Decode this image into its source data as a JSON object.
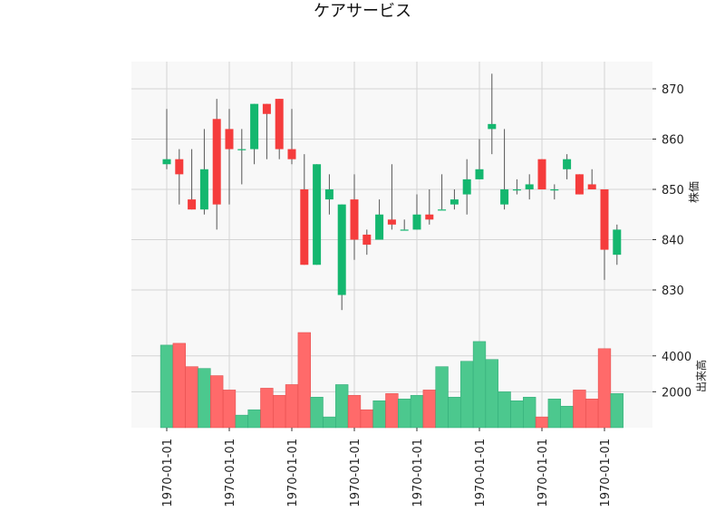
{
  "chart_data": {
    "type": "candlestick",
    "title": "ケアサービス",
    "price_axis": {
      "label": "株価",
      "ticks": [
        830,
        840,
        850,
        860,
        870
      ],
      "ylim": [
        824.5,
        876.5
      ]
    },
    "volume_axis": {
      "label": "出来高",
      "ticks": [
        2000,
        4000
      ],
      "tick_labels": [
        "2000",
        "4000"
      ],
      "ylim": [
        0,
        5300
      ]
    },
    "x_tick_labels": [
      "1970-01-01",
      "1970-01-01",
      "1970-01-01",
      "1970-01-01",
      "1970-01-01",
      "1970-01-01",
      "1970-01-01",
      "1970-01-01"
    ],
    "x_tick_positions": [
      0,
      5,
      10,
      15,
      20,
      25,
      30,
      35
    ],
    "grid": true,
    "colors": {
      "up": "#14b76f",
      "down": "#f53c3c",
      "up_volume": "#4cc88e",
      "down_volume": "#ff6a6a",
      "wick": "#555555",
      "panel_bg": "#f8f8f8",
      "grid": "#d4d4d4"
    },
    "candles": [
      {
        "open": 855,
        "high": 866,
        "low": 854,
        "close": 856,
        "volume": 4600
      },
      {
        "open": 856,
        "high": 858,
        "low": 847,
        "close": 853,
        "volume": 4700
      },
      {
        "open": 848,
        "high": 858,
        "low": 846,
        "close": 846,
        "volume": 3400
      },
      {
        "open": 846,
        "high": 862,
        "low": 845,
        "close": 854,
        "volume": 3300
      },
      {
        "open": 864,
        "high": 868,
        "low": 842,
        "close": 847,
        "volume": 2900
      },
      {
        "open": 862,
        "high": 866,
        "low": 847,
        "close": 858,
        "volume": 2100
      },
      {
        "open": 858,
        "high": 862,
        "low": 851,
        "close": 858,
        "volume": 700
      },
      {
        "open": 858,
        "high": 867,
        "low": 855,
        "close": 867,
        "volume": 1000
      },
      {
        "open": 867,
        "high": 867,
        "low": 856,
        "close": 865,
        "volume": 2200
      },
      {
        "open": 868,
        "high": 868,
        "low": 856,
        "close": 858,
        "volume": 1800
      },
      {
        "open": 858,
        "high": 866,
        "low": 855,
        "close": 856,
        "volume": 2400
      },
      {
        "open": 850,
        "high": 857,
        "low": 835,
        "close": 835,
        "volume": 5300
      },
      {
        "open": 835,
        "high": 855,
        "low": 835,
        "close": 855,
        "volume": 1700
      },
      {
        "open": 848,
        "high": 853,
        "low": 845,
        "close": 850,
        "volume": 600
      },
      {
        "open": 829,
        "high": 847,
        "low": 826,
        "close": 847,
        "volume": 2400
      },
      {
        "open": 848,
        "high": 853,
        "low": 836,
        "close": 840,
        "volume": 1800
      },
      {
        "open": 841,
        "high": 842,
        "low": 837,
        "close": 839,
        "volume": 1000
      },
      {
        "open": 840,
        "high": 848,
        "low": 840,
        "close": 845,
        "volume": 1500
      },
      {
        "open": 844,
        "high": 855,
        "low": 842,
        "close": 843,
        "volume": 1900
      },
      {
        "open": 842,
        "high": 844,
        "low": 842,
        "close": 842,
        "volume": 1600
      },
      {
        "open": 842,
        "high": 849,
        "low": 842,
        "close": 845,
        "volume": 1800
      },
      {
        "open": 845,
        "high": 850,
        "low": 843,
        "close": 844,
        "volume": 2100
      },
      {
        "open": 846,
        "high": 853,
        "low": 846,
        "close": 846,
        "volume": 3400
      },
      {
        "open": 847,
        "high": 850,
        "low": 846,
        "close": 848,
        "volume": 1700
      },
      {
        "open": 849,
        "high": 856,
        "low": 845,
        "close": 852,
        "volume": 3700
      },
      {
        "open": 852,
        "high": 860,
        "low": 852,
        "close": 854,
        "volume": 4800
      },
      {
        "open": 862,
        "high": 873,
        "low": 857,
        "close": 863,
        "volume": 3800
      },
      {
        "open": 847,
        "high": 862,
        "low": 846,
        "close": 850,
        "volume": 2000
      },
      {
        "open": 850,
        "high": 852,
        "low": 849,
        "close": 850,
        "volume": 1500
      },
      {
        "open": 850,
        "high": 853,
        "low": 848,
        "close": 851,
        "volume": 1700
      },
      {
        "open": 856,
        "high": 856,
        "low": 850,
        "close": 850,
        "volume": 600
      },
      {
        "open": 850,
        "high": 851,
        "low": 848,
        "close": 850,
        "volume": 1600
      },
      {
        "open": 854,
        "high": 857,
        "low": 852,
        "close": 856,
        "volume": 1200
      },
      {
        "open": 853,
        "high": 853,
        "low": 849,
        "close": 849,
        "volume": 2100
      },
      {
        "open": 851,
        "high": 854,
        "low": 850,
        "close": 850,
        "volume": 1600
      },
      {
        "open": 850,
        "high": 850,
        "low": 832,
        "close": 838,
        "volume": 4400
      },
      {
        "open": 837,
        "high": 843,
        "low": 835,
        "close": 842,
        "volume": 1900
      }
    ]
  }
}
